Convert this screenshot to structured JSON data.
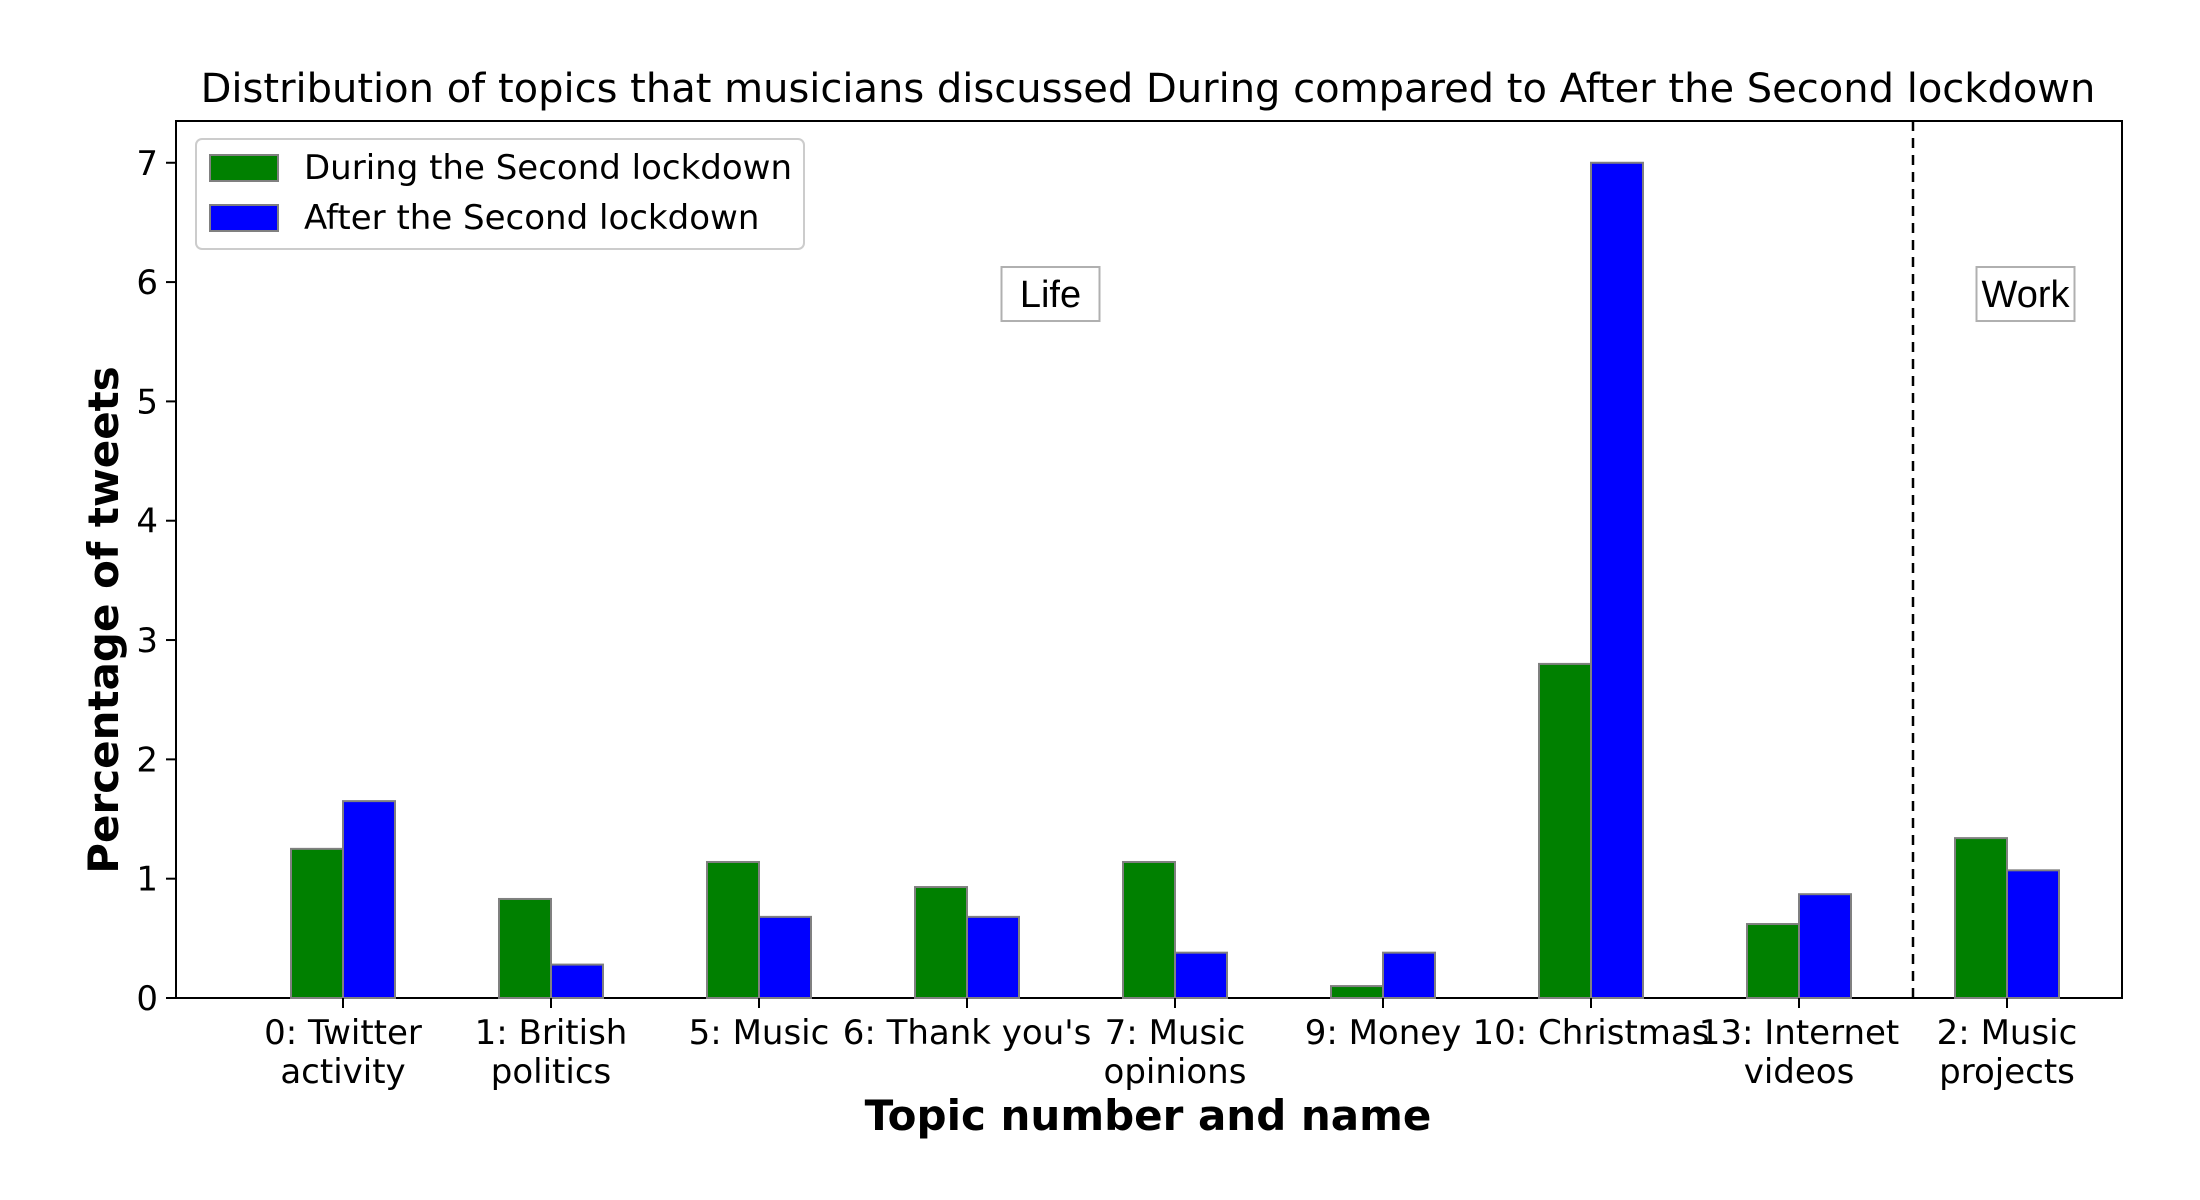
{
  "chart_data": {
    "type": "bar",
    "title": "Distribution of topics that musicians discussed During compared to After the Second lockdown",
    "xlabel": "Topic number and name",
    "ylabel": "Percentage of tweets",
    "categories": [
      [
        "0: Twitter",
        "activity"
      ],
      [
        "1: British",
        "politics"
      ],
      [
        "5: Music"
      ],
      [
        "6: Thank you's"
      ],
      [
        "7: Music",
        "opinions"
      ],
      [
        "9: Money"
      ],
      [
        "10: Christmas"
      ],
      [
        "13: Internet",
        "videos"
      ],
      [
        "2: Music",
        "projects"
      ]
    ],
    "series": [
      {
        "name": "During the Second lockdown",
        "color": "#008000",
        "values": [
          1.25,
          0.83,
          1.14,
          0.93,
          1.14,
          0.1,
          2.8,
          0.62,
          1.34
        ]
      },
      {
        "name": "After the Second lockdown",
        "color": "#0000ff",
        "values": [
          1.65,
          0.28,
          0.68,
          0.68,
          0.38,
          0.38,
          7.0,
          0.87,
          1.07
        ]
      }
    ],
    "ylim": [
      0,
      7.35
    ],
    "yticks": [
      0,
      1,
      2,
      3,
      4,
      5,
      6,
      7
    ],
    "legend_position": "top-left",
    "annotations": [
      {
        "text": "Life",
        "group": "life"
      },
      {
        "text": "Work",
        "group": "work"
      }
    ],
    "separator": {
      "style": "dashed",
      "between_categories": [
        7,
        8
      ]
    }
  }
}
